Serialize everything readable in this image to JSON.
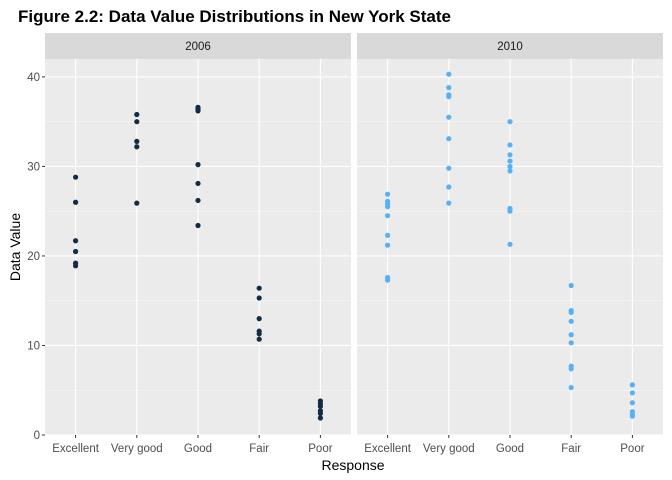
{
  "chart_data": {
    "type": "scatter",
    "title": "Figure 2.2: Data Value Distributions in New York State",
    "xlabel": "Response",
    "ylabel": "Data Value",
    "categories": [
      "Excellent",
      "Very good",
      "Good",
      "Fair",
      "Poor"
    ],
    "ylim": [
      0,
      42
    ],
    "yticks": [
      0,
      10,
      20,
      30,
      40
    ],
    "grid": true,
    "legend": "none",
    "facets": [
      {
        "label": "2006",
        "color": "#132B43",
        "points": {
          "Excellent": [
            28.8,
            26.0,
            21.7,
            20.5,
            19.2,
            18.9
          ],
          "Very good": [
            35.8,
            35.0,
            32.8,
            32.2,
            25.9
          ],
          "Good": [
            36.6,
            36.4,
            36.2,
            30.2,
            28.1,
            26.2,
            23.4
          ],
          "Fair": [
            16.4,
            15.3,
            13.0,
            11.6,
            11.3,
            10.7
          ],
          "Poor": [
            3.8,
            3.5,
            3.2,
            2.7,
            2.4,
            1.9
          ]
        }
      },
      {
        "label": "2010",
        "color": "#56B1F7",
        "points": {
          "Excellent": [
            26.9,
            26.1,
            25.8,
            25.5,
            24.5,
            22.3,
            21.2,
            17.6,
            17.3
          ],
          "Very good": [
            40.3,
            38.8,
            38.0,
            37.8,
            35.5,
            33.1,
            29.8,
            27.7,
            25.9
          ],
          "Good": [
            35.0,
            32.4,
            31.3,
            30.6,
            30.0,
            29.5,
            25.3,
            25.0,
            21.3
          ],
          "Fair": [
            16.7,
            13.9,
            13.7,
            12.7,
            11.2,
            10.3,
            7.7,
            7.4,
            5.3
          ],
          "Poor": [
            5.6,
            4.7,
            3.6,
            2.6,
            2.3,
            2.1
          ]
        }
      }
    ]
  }
}
